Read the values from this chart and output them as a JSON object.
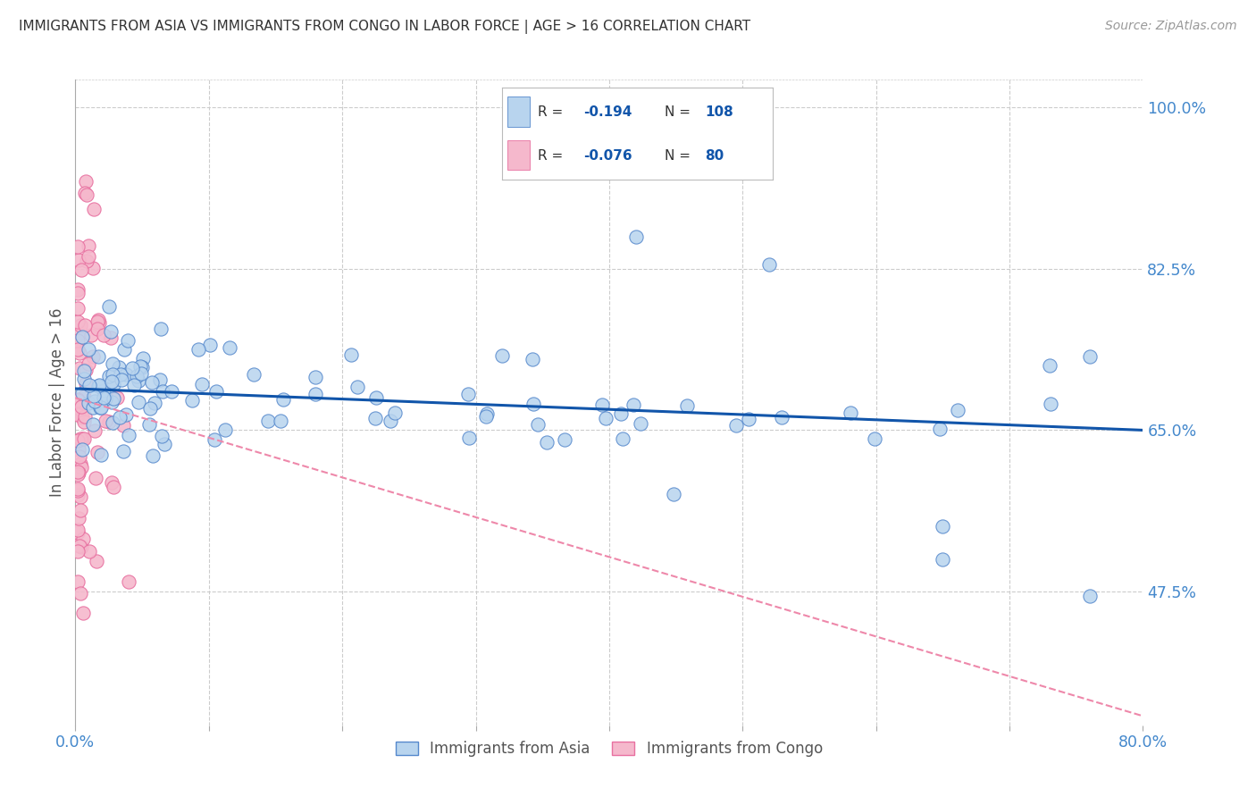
{
  "title": "IMMIGRANTS FROM ASIA VS IMMIGRANTS FROM CONGO IN LABOR FORCE | AGE > 16 CORRELATION CHART",
  "source": "Source: ZipAtlas.com",
  "ylabel": "In Labor Force | Age > 16",
  "xlim": [
    0.0,
    0.8
  ],
  "ylim": [
    0.33,
    1.03
  ],
  "x_ticks": [
    0.0,
    0.1,
    0.2,
    0.3,
    0.4,
    0.5,
    0.6,
    0.7,
    0.8
  ],
  "y_tick_labels": [
    "100.0%",
    "82.5%",
    "65.0%",
    "47.5%"
  ],
  "y_ticks": [
    1.0,
    0.825,
    0.65,
    0.475
  ],
  "legend_r_asia": "-0.194",
  "legend_n_asia": "108",
  "legend_r_congo": "-0.076",
  "legend_n_congo": "80",
  "asia_color": "#b8d4ee",
  "congo_color": "#f5b8cc",
  "asia_edge_color": "#5588cc",
  "congo_edge_color": "#e870a0",
  "asia_line_color": "#1155aa",
  "congo_line_color": "#ee88aa",
  "title_color": "#333333",
  "axis_label_color": "#4488cc",
  "background_color": "#ffffff",
  "grid_color": "#cccccc",
  "asia_trend_start_y": 0.695,
  "asia_trend_end_y": 0.65,
  "congo_trend_start_y": 0.685,
  "congo_trend_end_y": 0.34
}
